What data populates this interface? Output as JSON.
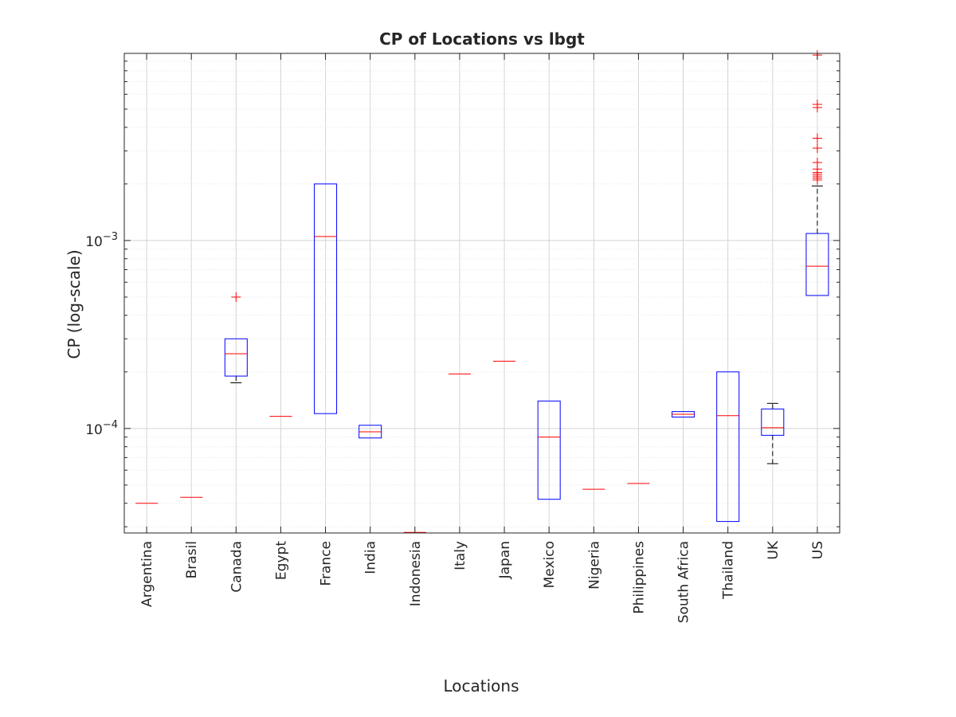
{
  "chart_data": {
    "type": "box",
    "title": "CP of Locations vs lbgt",
    "xlabel": "Locations",
    "ylabel": "CP (log-scale)",
    "y_scale": "log",
    "ylim": [
      2.78e-05,
      0.0099
    ],
    "y_ticks": [
      {
        "value": 0.0001,
        "base": "10",
        "exp": "−4"
      },
      {
        "value": 0.001,
        "base": "10",
        "exp": "−3"
      }
    ],
    "grid": true,
    "colors": {
      "box": "#0000ff",
      "median": "#ff0000",
      "whisker": "#000000",
      "outlier": "#ff0000",
      "grid_major": "#d4d4d4",
      "grid_minor": "#e6e6e6",
      "axis": "#262626"
    },
    "categories": [
      "Argentina",
      "Brasil",
      "Canada",
      "Egypt",
      "France",
      "India",
      "Indonesia",
      "Italy",
      "Japan",
      "Mexico",
      "Nigeria",
      "Philippines",
      "South Africa",
      "Thailand",
      "UK",
      "US"
    ],
    "boxes": [
      {
        "label": "Argentina",
        "q1": 4e-05,
        "median": 4e-05,
        "q3": 4e-05,
        "whisker_low": 4e-05,
        "whisker_high": 4e-05,
        "outliers": []
      },
      {
        "label": "Brasil",
        "q1": 4.3e-05,
        "median": 4.3e-05,
        "q3": 4.3e-05,
        "whisker_low": 4.3e-05,
        "whisker_high": 4.3e-05,
        "outliers": []
      },
      {
        "label": "Canada",
        "q1": 0.00019,
        "median": 0.00025,
        "q3": 0.0003,
        "whisker_low": 0.000175,
        "whisker_high": 0.0003,
        "outliers": [
          0.0005
        ]
      },
      {
        "label": "Egypt",
        "q1": 0.000116,
        "median": 0.000116,
        "q3": 0.000116,
        "whisker_low": 0.000116,
        "whisker_high": 0.000116,
        "outliers": []
      },
      {
        "label": "France",
        "q1": 0.00012,
        "median": 0.00105,
        "q3": 0.002,
        "whisker_low": 0.00012,
        "whisker_high": 0.002,
        "outliers": []
      },
      {
        "label": "India",
        "q1": 8.9e-05,
        "median": 9.6e-05,
        "q3": 0.000104,
        "whisker_low": 8.9e-05,
        "whisker_high": 0.000104,
        "outliers": []
      },
      {
        "label": "Indonesia",
        "q1": 2.8e-05,
        "median": 2.8e-05,
        "q3": 2.8e-05,
        "whisker_low": 2.8e-05,
        "whisker_high": 2.8e-05,
        "outliers": []
      },
      {
        "label": "Italy",
        "q1": 0.000195,
        "median": 0.000195,
        "q3": 0.000195,
        "whisker_low": 0.000195,
        "whisker_high": 0.000195,
        "outliers": []
      },
      {
        "label": "Japan",
        "q1": 0.000228,
        "median": 0.000228,
        "q3": 0.000228,
        "whisker_low": 0.000228,
        "whisker_high": 0.000228,
        "outliers": []
      },
      {
        "label": "Mexico",
        "q1": 4.2e-05,
        "median": 9e-05,
        "q3": 0.00014,
        "whisker_low": 4.2e-05,
        "whisker_high": 0.00014,
        "outliers": []
      },
      {
        "label": "Nigeria",
        "q1": 4.75e-05,
        "median": 4.75e-05,
        "q3": 4.75e-05,
        "whisker_low": 4.75e-05,
        "whisker_high": 4.75e-05,
        "outliers": []
      },
      {
        "label": "Philippines",
        "q1": 5.1e-05,
        "median": 5.1e-05,
        "q3": 5.1e-05,
        "whisker_low": 5.1e-05,
        "whisker_high": 5.1e-05,
        "outliers": []
      },
      {
        "label": "South Africa",
        "q1": 0.000115,
        "median": 0.000119,
        "q3": 0.000123,
        "whisker_low": 0.000115,
        "whisker_high": 0.000123,
        "outliers": []
      },
      {
        "label": "Thailand",
        "q1": 3.2e-05,
        "median": 0.000117,
        "q3": 0.0002,
        "whisker_low": 3.2e-05,
        "whisker_high": 0.0002,
        "outliers": []
      },
      {
        "label": "UK",
        "q1": 9.2e-05,
        "median": 0.000101,
        "q3": 0.000127,
        "whisker_low": 6.5e-05,
        "whisker_high": 0.000136,
        "outliers": []
      },
      {
        "label": "US",
        "q1": 0.00051,
        "median": 0.00073,
        "q3": 0.00109,
        "whisker_low": 0.00051,
        "whisker_high": 0.00195,
        "outliers": [
          0.0021,
          0.00215,
          0.0022,
          0.00225,
          0.0023,
          0.0024,
          0.0026,
          0.0031,
          0.0035,
          0.0051,
          0.0053,
          0.0097
        ]
      }
    ]
  }
}
